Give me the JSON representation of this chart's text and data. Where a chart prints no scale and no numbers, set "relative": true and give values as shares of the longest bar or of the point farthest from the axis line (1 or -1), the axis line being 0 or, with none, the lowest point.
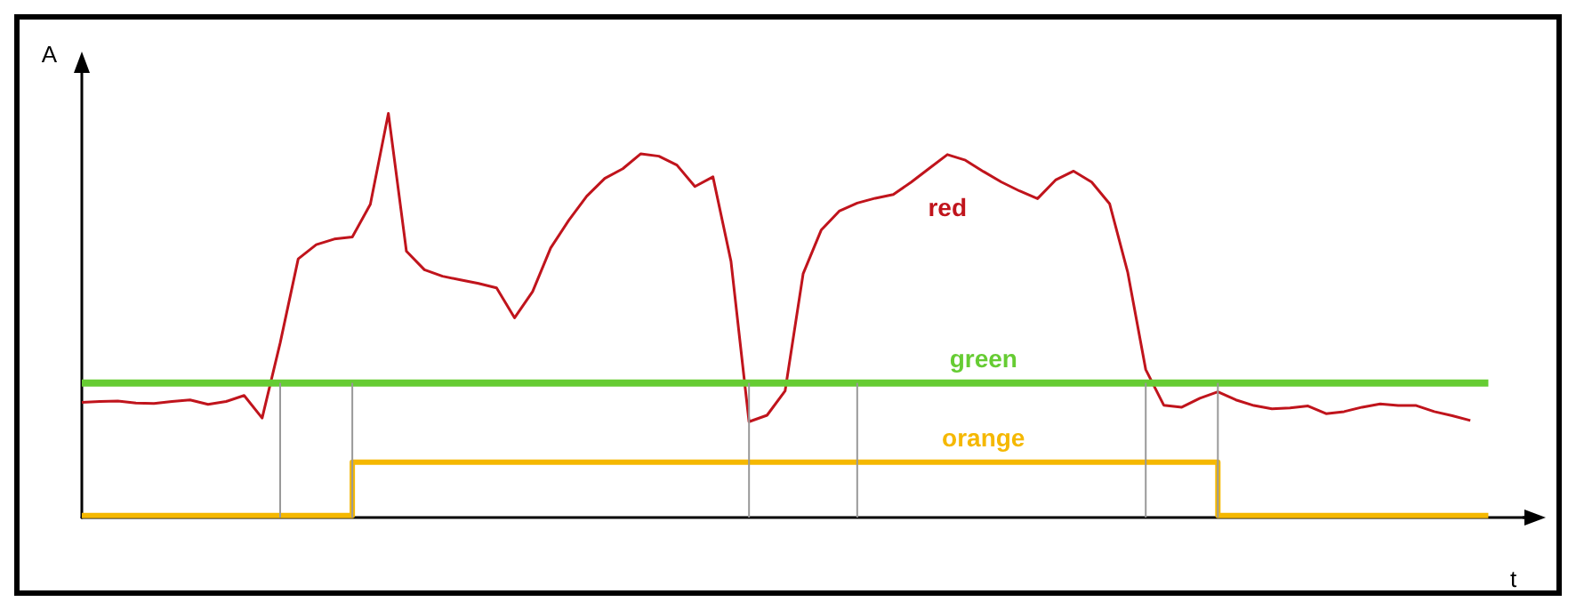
{
  "chart_data": {
    "type": "line",
    "relative": true,
    "xlabel": "t",
    "ylabel": "A",
    "grid": false,
    "legend": false,
    "marker": "none",
    "categories": [
      null,
      null,
      null,
      null,
      null,
      null,
      null,
      null,
      null,
      null,
      null,
      null,
      null,
      null,
      null,
      null,
      null,
      null,
      null,
      null,
      null,
      null,
      null,
      null,
      null,
      null,
      null,
      null,
      null,
      null,
      null,
      null,
      null,
      null,
      null,
      null,
      null,
      null,
      null,
      null,
      null,
      null,
      null,
      null,
      null,
      null,
      null,
      null,
      null,
      null,
      null,
      null,
      null,
      null,
      null,
      null,
      null,
      null,
      null,
      null,
      null,
      null,
      null,
      null,
      null,
      null,
      null,
      null,
      null,
      null,
      null,
      null,
      null,
      null,
      null,
      null,
      null,
      null,
      null,
      null,
      null
    ],
    "series": [
      {
        "name": "red",
        "color": "#c0141c",
        "values": [
          0.285,
          0.287,
          0.288,
          0.283,
          0.282,
          0.287,
          0.291,
          0.28,
          0.287,
          0.302,
          0.246,
          0.432,
          0.64,
          0.675,
          0.689,
          0.694,
          0.775,
          1,
          0.659,
          0.613,
          0.597,
          0.588,
          0.579,
          0.568,
          0.494,
          0.559,
          0.667,
          0.735,
          0.795,
          0.839,
          0.863,
          0.9,
          0.894,
          0.872,
          0.819,
          0.843,
          0.634,
          0.237,
          0.253,
          0.313,
          0.603,
          0.711,
          0.758,
          0.778,
          0.79,
          0.799,
          0.83,
          0.864,
          0.898,
          0.884,
          0.856,
          0.83,
          0.808,
          0.789,
          0.835,
          0.857,
          0.83,
          0.776,
          0.607,
          0.366,
          0.278,
          0.273,
          0.295,
          0.311,
          0.291,
          0.277,
          0.269,
          0.271,
          0.276,
          0.257,
          0.262,
          0.273,
          0.281,
          0.277,
          0.277,
          0.262,
          0.252,
          0.24,
          null,
          null,
          null
        ]
      },
      {
        "name": "green",
        "color": "#66cc33",
        "values": [
          0.333,
          0.333,
          0.333,
          0.333,
          0.333,
          0.333,
          0.333,
          0.333,
          0.333,
          0.333,
          0.333,
          0.333,
          0.333,
          0.333,
          0.333,
          0.333,
          0.333,
          0.333,
          0.333,
          0.333,
          0.333,
          0.333,
          0.333,
          0.333,
          0.333,
          0.333,
          0.333,
          0.333,
          0.333,
          0.333,
          0.333,
          0.333,
          0.333,
          0.333,
          0.333,
          0.333,
          0.333,
          0.333,
          0.333,
          0.333,
          0.333,
          0.333,
          0.333,
          0.333,
          0.333,
          0.333,
          0.333,
          0.333,
          0.333,
          0.333,
          0.333,
          0.333,
          0.333,
          0.333,
          0.333,
          0.333,
          0.333,
          0.333,
          0.333,
          0.333,
          0.333,
          0.333,
          0.333,
          0.333,
          0.333,
          0.333,
          0.333,
          0.333,
          0.333,
          0.333,
          0.333,
          0.333,
          0.333,
          0.333,
          0.333,
          0.333,
          0.333,
          0.333,
          0.333,
          null,
          null
        ]
      },
      {
        "name": "orange",
        "type": "step",
        "color": "#f5b800",
        "values": [
          0.005,
          0.005,
          0.005,
          0.005,
          0.005,
          0.005,
          0.005,
          0.005,
          0.005,
          0.005,
          0.005,
          0.005,
          0.005,
          0.005,
          0.005,
          0.137,
          0.137,
          0.137,
          0.137,
          0.137,
          0.137,
          0.137,
          0.137,
          0.137,
          0.137,
          0.137,
          0.137,
          0.137,
          0.137,
          0.137,
          0.137,
          0.137,
          0.137,
          0.137,
          0.137,
          0.137,
          0.137,
          0.137,
          0.137,
          0.137,
          0.137,
          0.137,
          0.137,
          0.137,
          0.137,
          0.137,
          0.137,
          0.137,
          0.137,
          0.137,
          0.137,
          0.137,
          0.137,
          0.137,
          0.137,
          0.137,
          0.137,
          0.137,
          0.137,
          0.137,
          0.137,
          0.137,
          0.137,
          0.005,
          0.005,
          0.005,
          0.005,
          0.005,
          0.005,
          0.005,
          0.005,
          0.005,
          0.005,
          0.005,
          0.005,
          0.005,
          0.005,
          0.005,
          0.005,
          null,
          null
        ]
      }
    ]
  }
}
